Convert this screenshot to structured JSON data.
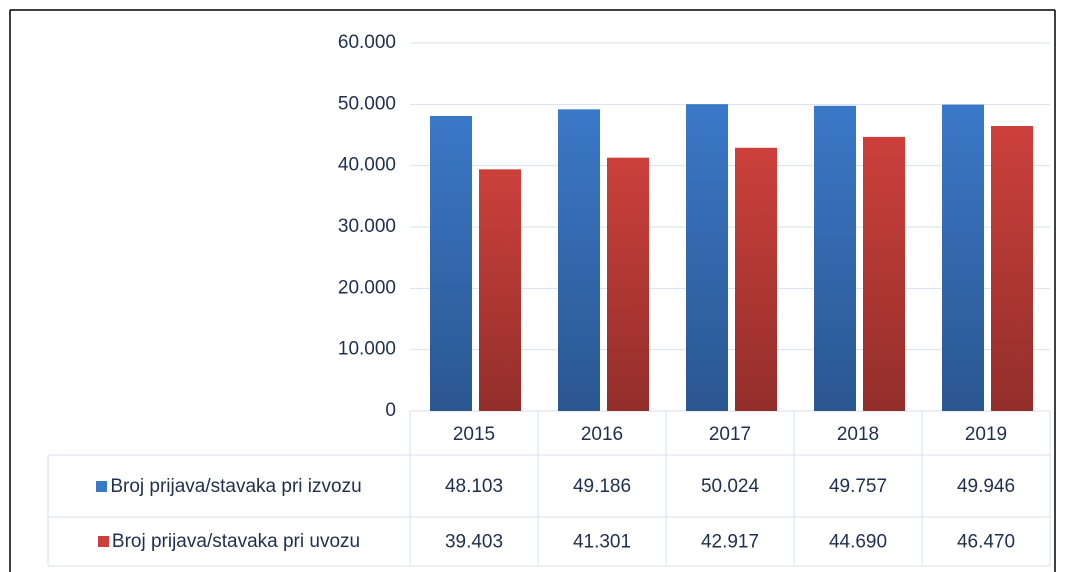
{
  "chart_data": {
    "type": "bar",
    "categories": [
      "2015",
      "2016",
      "2017",
      "2018",
      "2019"
    ],
    "series": [
      {
        "name": "Broj prijava/stavaka pri izvozu",
        "color": "#3b78c8",
        "values": [
          48103,
          49186,
          50024,
          49757,
          49946
        ],
        "value_labels": [
          "48.103",
          "49.186",
          "50.024",
          "49.757",
          "49.946"
        ]
      },
      {
        "name": "Broj prijava/stavaka pri uvozu",
        "color": "#cc403b",
        "values": [
          39403,
          41301,
          42917,
          44690,
          46470
        ],
        "value_labels": [
          "39.403",
          "41.301",
          "42.917",
          "44.690",
          "46.470"
        ]
      }
    ],
    "ylim": [
      0,
      60000
    ],
    "yticks": [
      0,
      {
        "value": 10000,
        "label": "10.000"
      },
      {
        "value": 20000,
        "label": "20.000"
      },
      {
        "value": 30000,
        "label": "30.000"
      },
      {
        "value": 40000,
        "label": "40.000"
      },
      {
        "value": 50000,
        "label": "50.000"
      },
      {
        "value": 60000,
        "label": "60.000"
      }
    ],
    "grid": true
  }
}
